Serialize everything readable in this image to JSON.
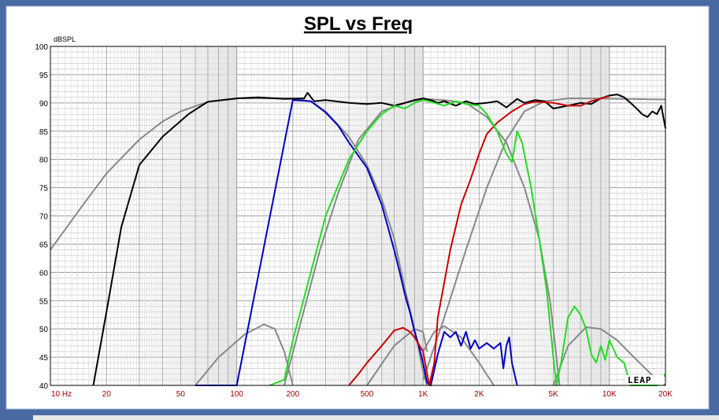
{
  "chart_data": {
    "type": "line",
    "title": "SPL vs Freq",
    "ylabel": "dBSPL",
    "xlabel": "",
    "x_scale": "log",
    "xlim": [
      10,
      20000
    ],
    "ylim": [
      40,
      100
    ],
    "grid": true,
    "yticks": [
      40,
      45,
      50,
      55,
      60,
      65,
      70,
      75,
      80,
      85,
      90,
      95,
      100
    ],
    "xticks": [
      {
        "v": 10,
        "label": "10  Hz"
      },
      {
        "v": 20,
        "label": "20"
      },
      {
        "v": 50,
        "label": "50"
      },
      {
        "v": 100,
        "label": "100"
      },
      {
        "v": 200,
        "label": "200"
      },
      {
        "v": 500,
        "label": "500"
      },
      {
        "v": 1000,
        "label": "1K"
      },
      {
        "v": 2000,
        "label": "2K"
      },
      {
        "v": 5000,
        "label": "5K"
      },
      {
        "v": 10000,
        "label": "10K"
      },
      {
        "v": 20000,
        "label": "20K"
      }
    ],
    "watermark": "LEAP",
    "series": [
      {
        "color": "#888888",
        "points": [
          [
            10,
            64
          ],
          [
            15,
            72
          ],
          [
            20,
            77.5
          ],
          [
            30,
            83.5
          ],
          [
            40,
            86.7
          ],
          [
            50,
            88.5
          ],
          [
            70,
            90.2
          ],
          [
            100,
            90.8
          ],
          [
            200,
            90.8
          ],
          [
            250,
            90.3
          ],
          [
            300,
            88.5
          ],
          [
            400,
            84
          ],
          [
            500,
            79
          ],
          [
            600,
            73
          ],
          [
            700,
            66
          ],
          [
            800,
            57
          ],
          [
            900,
            50
          ],
          [
            1000,
            42.5
          ],
          [
            1050,
            40
          ]
        ]
      },
      {
        "color": "#888888",
        "points": [
          [
            60,
            40
          ],
          [
            80,
            45
          ],
          [
            110,
            49
          ],
          [
            140,
            50.8
          ],
          [
            160,
            50
          ],
          [
            180,
            46
          ],
          [
            200,
            40
          ]
        ]
      },
      {
        "color": "#888888",
        "points": [
          [
            180,
            40
          ],
          [
            220,
            51
          ],
          [
            280,
            64
          ],
          [
            350,
            74
          ],
          [
            450,
            83.5
          ],
          [
            600,
            88.5
          ],
          [
            800,
            90
          ],
          [
            1000,
            90.7
          ],
          [
            1300,
            90.5
          ],
          [
            1700,
            90
          ],
          [
            2200,
            87.5
          ],
          [
            2800,
            83
          ],
          [
            3500,
            75
          ],
          [
            4200,
            66
          ],
          [
            4800,
            55
          ],
          [
            5200,
            45
          ],
          [
            5400,
            40
          ]
        ]
      },
      {
        "color": "#888888",
        "points": [
          [
            500,
            40
          ],
          [
            700,
            47
          ],
          [
            900,
            50
          ],
          [
            1000,
            49.5
          ],
          [
            1050,
            46
          ]
        ]
      },
      {
        "color": "#888888",
        "points": [
          [
            1000,
            46
          ],
          [
            1150,
            49.5
          ],
          [
            1300,
            50.5
          ],
          [
            1600,
            48.5
          ],
          [
            2000,
            44
          ],
          [
            2400,
            40
          ]
        ]
      },
      {
        "color": "#888888",
        "points": [
          [
            1000,
            41
          ],
          [
            1300,
            52
          ],
          [
            1700,
            64
          ],
          [
            2200,
            75
          ],
          [
            2800,
            83.5
          ],
          [
            3500,
            88.5
          ],
          [
            4500,
            90.3
          ],
          [
            6000,
            90.8
          ],
          [
            8000,
            90.8
          ],
          [
            12000,
            90.7
          ],
          [
            20000,
            90.6
          ]
        ]
      },
      {
        "color": "#888888",
        "points": [
          [
            5000,
            40
          ],
          [
            6000,
            47
          ],
          [
            7500,
            50.3
          ],
          [
            9000,
            50
          ],
          [
            11000,
            48
          ],
          [
            14000,
            44.5
          ],
          [
            18000,
            41
          ],
          [
            20000,
            40
          ]
        ]
      },
      {
        "color": "#000000",
        "points": [
          [
            17,
            40
          ],
          [
            20,
            53
          ],
          [
            24,
            68
          ],
          [
            30,
            79
          ],
          [
            40,
            84
          ],
          [
            55,
            88
          ],
          [
            70,
            90.2
          ],
          [
            100,
            90.8
          ],
          [
            130,
            91
          ],
          [
            180,
            90.7
          ],
          [
            230,
            90.8
          ],
          [
            240,
            91.8
          ],
          [
            260,
            90.3
          ],
          [
            300,
            90.5
          ],
          [
            400,
            90
          ],
          [
            500,
            89.8
          ],
          [
            600,
            90
          ],
          [
            700,
            89.5
          ],
          [
            800,
            90
          ],
          [
            900,
            90.5
          ],
          [
            1000,
            90.8
          ],
          [
            1100,
            90.5
          ],
          [
            1200,
            90
          ],
          [
            1300,
            90.3
          ],
          [
            1500,
            89.5
          ],
          [
            1700,
            90.3
          ],
          [
            1900,
            89.8
          ],
          [
            2200,
            90
          ],
          [
            2500,
            90.3
          ],
          [
            2800,
            89.2
          ],
          [
            3200,
            90.7
          ],
          [
            3500,
            90
          ],
          [
            4000,
            90.5
          ],
          [
            4500,
            90.3
          ],
          [
            5000,
            89
          ],
          [
            6000,
            89.5
          ],
          [
            7000,
            90
          ],
          [
            8000,
            89.8
          ],
          [
            9000,
            90.8
          ],
          [
            10000,
            91.3
          ],
          [
            11000,
            91.5
          ],
          [
            12000,
            91
          ],
          [
            13000,
            90
          ],
          [
            14000,
            89
          ],
          [
            15000,
            88
          ],
          [
            16000,
            87.5
          ],
          [
            17000,
            88.5
          ],
          [
            18000,
            88
          ],
          [
            19000,
            89.5
          ],
          [
            20000,
            85.5
          ]
        ]
      },
      {
        "color": "#0000c0",
        "points": [
          [
            60,
            40
          ],
          [
            100,
            40
          ],
          [
            200,
            90.5
          ],
          [
            250,
            90.3
          ],
          [
            300,
            88.3
          ],
          [
            350,
            86
          ],
          [
            400,
            83
          ],
          [
            500,
            78.5
          ],
          [
            600,
            72
          ],
          [
            700,
            64
          ],
          [
            750,
            60
          ],
          [
            800,
            56
          ],
          [
            850,
            53
          ],
          [
            900,
            49.5
          ],
          [
            950,
            47
          ],
          [
            1000,
            44
          ],
          [
            1050,
            40.5
          ],
          [
            1100,
            40
          ],
          [
            1200,
            45.5
          ],
          [
            1300,
            49.5
          ],
          [
            1400,
            48.5
          ],
          [
            1500,
            49.5
          ],
          [
            1600,
            47
          ],
          [
            1700,
            49.5
          ],
          [
            1800,
            46.5
          ],
          [
            1900,
            48
          ],
          [
            2000,
            46.5
          ],
          [
            2200,
            47.5
          ],
          [
            2400,
            46.5
          ],
          [
            2600,
            47.5
          ],
          [
            2700,
            43
          ],
          [
            2800,
            47
          ],
          [
            2900,
            48.5
          ],
          [
            3000,
            44
          ],
          [
            3200,
            40
          ]
        ]
      },
      {
        "color": "#cc0000",
        "points": [
          [
            400,
            40
          ],
          [
            450,
            42
          ],
          [
            500,
            44
          ],
          [
            600,
            47
          ],
          [
            700,
            49.7
          ],
          [
            780,
            50.2
          ],
          [
            850,
            49.5
          ],
          [
            900,
            48.5
          ],
          [
            1000,
            46
          ],
          [
            1080,
            40
          ],
          [
            1150,
            44
          ],
          [
            1200,
            52
          ],
          [
            1400,
            64
          ],
          [
            1600,
            72
          ],
          [
            1800,
            76.5
          ],
          [
            2000,
            81
          ],
          [
            2200,
            84.5
          ],
          [
            2500,
            86.5
          ],
          [
            3000,
            88.5
          ],
          [
            3500,
            89.8
          ],
          [
            4000,
            90.2
          ],
          [
            5000,
            90
          ],
          [
            6000,
            89.5
          ],
          [
            7000,
            89.5
          ],
          [
            8000,
            90.3
          ],
          [
            9000,
            90.8
          ],
          [
            10000,
            91.2
          ]
        ]
      },
      {
        "color": "#22dd22",
        "points": [
          [
            150,
            40
          ],
          [
            180,
            41
          ],
          [
            200,
            48
          ],
          [
            250,
            60
          ],
          [
            300,
            70
          ],
          [
            400,
            80
          ],
          [
            500,
            85
          ],
          [
            600,
            88
          ],
          [
            700,
            89.5
          ],
          [
            800,
            89
          ],
          [
            900,
            90
          ],
          [
            1000,
            90.5
          ],
          [
            1100,
            90.2
          ],
          [
            1300,
            89.5
          ],
          [
            1500,
            90.3
          ],
          [
            1700,
            89.8
          ],
          [
            2000,
            89.5
          ],
          [
            2200,
            88
          ],
          [
            2500,
            85
          ],
          [
            2800,
            81
          ],
          [
            3000,
            79.5
          ],
          [
            3200,
            85
          ],
          [
            3400,
            83
          ],
          [
            3800,
            75
          ],
          [
            4200,
            66
          ],
          [
            4600,
            57
          ],
          [
            5000,
            45
          ],
          [
            5200,
            40
          ],
          [
            5500,
            44
          ],
          [
            6000,
            52
          ],
          [
            6500,
            54
          ],
          [
            7000,
            52.5
          ],
          [
            7500,
            50
          ],
          [
            8000,
            45.5
          ],
          [
            8500,
            44
          ],
          [
            9000,
            47
          ],
          [
            9500,
            44.5
          ],
          [
            10000,
            48
          ],
          [
            11000,
            45
          ],
          [
            12000,
            44
          ],
          [
            13000,
            40
          ],
          [
            14000,
            40
          ],
          [
            15000,
            40
          ],
          [
            18000,
            40
          ],
          [
            20000,
            42
          ]
        ]
      }
    ]
  }
}
